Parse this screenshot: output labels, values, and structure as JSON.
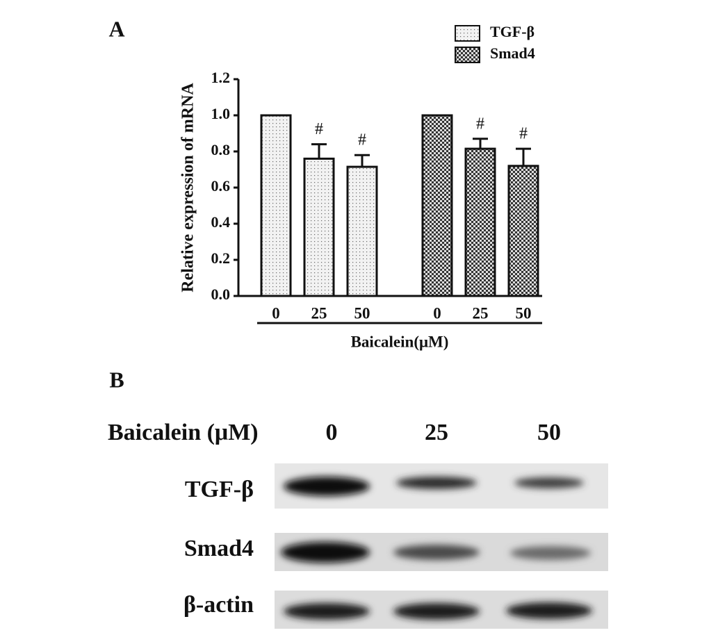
{
  "panel_labels": [
    "A",
    "B"
  ],
  "chart_data": {
    "type": "bar",
    "y_label": "Relative expression of mRNA",
    "x_label": "Baicalein(μM)",
    "categories": [
      "0",
      "25",
      "50"
    ],
    "series": [
      {
        "name": "TGF-β",
        "pattern": "dots",
        "values": [
          1.0,
          0.76,
          0.715
        ],
        "errors": [
          null,
          0.08,
          0.065
        ],
        "markers": [
          null,
          "#",
          "#"
        ]
      },
      {
        "name": "Smad4",
        "pattern": "checker",
        "values": [
          1.0,
          0.815,
          0.72
        ],
        "errors": [
          null,
          0.055,
          0.095
        ],
        "markers": [
          null,
          "#",
          "#"
        ]
      }
    ],
    "ylim": [
      0,
      1.2
    ],
    "yticks": [
      {
        "value": 0,
        "label": "0.0"
      },
      0.2,
      0.4,
      0.6,
      0.8,
      {
        "value": 1,
        "label": "1.0"
      },
      1.2
    ],
    "legend": "top-right"
  },
  "blot": {
    "treatment_label": "Baicalein (μM)",
    "doses": [
      "0",
      "25",
      "50"
    ],
    "rows": [
      "TGF-β",
      "Smad4",
      "β-actin"
    ]
  }
}
